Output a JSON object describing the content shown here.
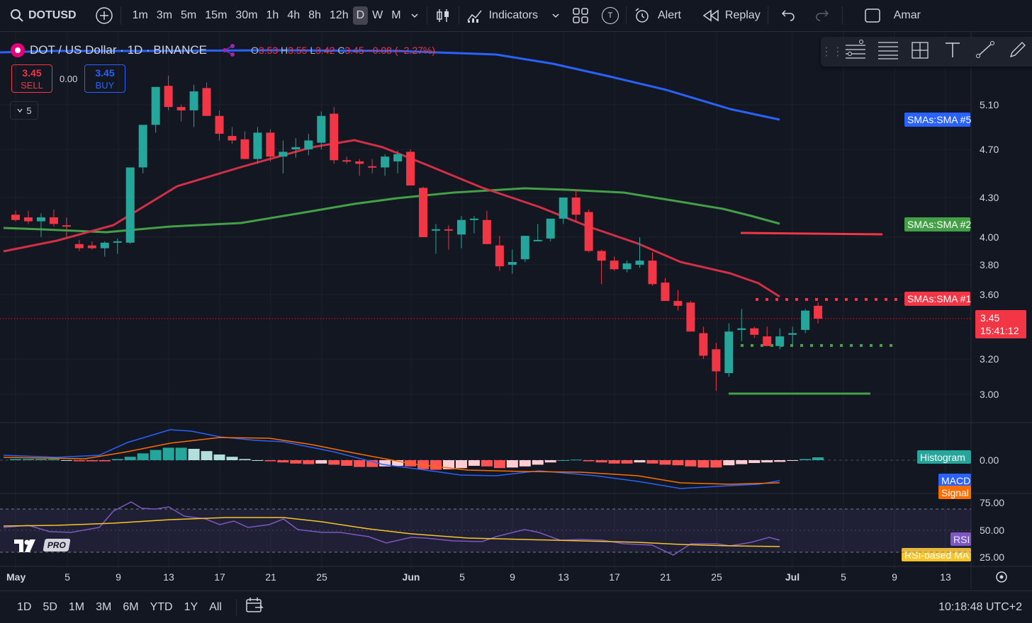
{
  "toolbar": {
    "symbol": "DOTUSD",
    "timeframes": [
      "1m",
      "3m",
      "5m",
      "15m",
      "30m",
      "1h",
      "4h",
      "8h",
      "12h",
      "D",
      "W",
      "M"
    ],
    "active_timeframe": "D",
    "indicators_label": "Indicators",
    "template_badge": "T",
    "alert_label": "Alert",
    "replay_label": "Replay",
    "user_label": "Amar"
  },
  "legend": {
    "title": "DOT / US Dollar · 1D · BINANCE",
    "o_label": "O",
    "o": "3.53",
    "h_label": "H",
    "h": "3.55",
    "l_label": "L",
    "l": "3.42",
    "c_label": "C",
    "c": "3.45",
    "change": "−0.08 (−2.27%)",
    "sell_price": "3.45",
    "sell_label": "SELL",
    "spread": "0.00",
    "buy_price": "3.45",
    "buy_label": "BUY",
    "collapse_count": "5"
  },
  "logo_text": "PRO",
  "bottom": {
    "ranges": [
      "1D",
      "5D",
      "1M",
      "3M",
      "6M",
      "YTD",
      "1Y",
      "All"
    ],
    "clock": "10:18:48 UTC+2"
  },
  "chart_data": {
    "type": "candlestick",
    "symbol": "DOT / US Dollar",
    "interval": "1D",
    "exchange": "BINANCE",
    "price_axis_ticks": [
      "5.10",
      "4.70",
      "4.30",
      "4.00",
      "3.80",
      "3.60",
      "3.20",
      "3.00"
    ],
    "macd_axis_ticks": [
      "0.00"
    ],
    "rsi_axis_ticks": [
      "75.00",
      "50.00",
      "25.00"
    ],
    "date_axis_ticks": [
      "May",
      "5",
      "9",
      "13",
      "17",
      "21",
      "25",
      "Jun",
      "5",
      "9",
      "13",
      "17",
      "21",
      "25",
      "Jul",
      "5",
      "9",
      "13"
    ],
    "last_price": "3.45",
    "countdown": "15:41:12",
    "series_tags": [
      {
        "name": "SMAs:SMA #5",
        "color": "#2962ff"
      },
      {
        "name": "SMAs:SMA #2",
        "color": "#43a047"
      },
      {
        "name": "SMAs:SMA #1",
        "color": "#f23645"
      }
    ],
    "indicator_tags": [
      {
        "name": "Histogram",
        "color": "#26a69a"
      },
      {
        "name": "MACD",
        "color": "#2962ff"
      },
      {
        "name": "Signal",
        "color": "#ff6d00"
      },
      {
        "name": "RSI",
        "color": "#7e57c2"
      },
      {
        "name": "RSI-based MA",
        "color": "#f7c52a"
      }
    ],
    "candles_ohlc": [
      [
        4.17,
        4.2,
        4.12,
        4.13
      ],
      [
        4.15,
        4.2,
        4.1,
        4.12
      ],
      [
        4.12,
        4.18,
        4.0,
        4.15
      ],
      [
        4.15,
        4.21,
        4.08,
        4.1
      ],
      [
        4.09,
        4.15,
        4.0,
        4.08
      ],
      [
        3.95,
        3.98,
        3.9,
        3.92
      ],
      [
        3.94,
        3.97,
        3.91,
        3.92
      ],
      [
        3.92,
        3.97,
        3.86,
        3.96
      ],
      [
        3.96,
        3.99,
        3.88,
        3.97
      ],
      [
        3.96,
        4.55,
        3.95,
        4.55
      ],
      [
        4.55,
        4.9,
        4.5,
        4.92
      ],
      [
        4.92,
        5.25,
        4.85,
        5.26
      ],
      [
        5.27,
        5.36,
        5.05,
        5.08
      ],
      [
        5.08,
        5.1,
        4.95,
        5.05
      ],
      [
        5.05,
        5.28,
        4.9,
        5.22
      ],
      [
        5.25,
        5.3,
        5.0,
        5.0
      ],
      [
        5.0,
        5.05,
        4.78,
        4.84
      ],
      [
        4.82,
        4.9,
        4.75,
        4.78
      ],
      [
        4.79,
        4.86,
        4.62,
        4.62
      ],
      [
        4.62,
        4.9,
        4.58,
        4.85
      ],
      [
        4.85,
        4.88,
        4.6,
        4.64
      ],
      [
        4.64,
        4.78,
        4.5,
        4.68
      ],
      [
        4.7,
        4.8,
        4.63,
        4.72
      ],
      [
        4.7,
        4.84,
        4.65,
        4.78
      ],
      [
        4.76,
        5.04,
        4.7,
        5.0
      ],
      [
        5.02,
        5.08,
        4.58,
        4.61
      ],
      [
        4.61,
        4.64,
        4.58,
        4.6
      ],
      [
        4.6,
        4.62,
        4.48,
        4.58
      ],
      [
        4.56,
        4.62,
        4.5,
        4.55
      ],
      [
        4.55,
        4.66,
        4.48,
        4.64
      ],
      [
        4.6,
        4.69,
        4.5,
        4.66
      ],
      [
        4.68,
        4.7,
        4.4,
        4.4
      ],
      [
        4.38,
        4.39,
        4.0,
        4.0
      ],
      [
        4.05,
        4.1,
        3.88,
        4.06
      ],
      [
        4.06,
        4.09,
        3.91,
        4.05
      ],
      [
        4.02,
        4.16,
        3.92,
        4.13
      ],
      [
        4.13,
        4.16,
        4.03,
        4.14
      ],
      [
        4.13,
        4.2,
        3.95,
        3.95
      ],
      [
        3.94,
        4.01,
        3.76,
        3.79
      ],
      [
        3.8,
        3.91,
        3.74,
        3.82
      ],
      [
        3.84,
        4.01,
        3.82,
        4.01
      ],
      [
        3.98,
        4.1,
        3.97,
        3.98
      ],
      [
        3.99,
        4.1,
        3.97,
        4.14
      ],
      [
        4.14,
        4.3,
        4.1,
        4.3
      ],
      [
        4.3,
        4.37,
        4.12,
        4.17
      ],
      [
        4.19,
        4.21,
        3.89,
        3.9
      ],
      [
        3.9,
        3.91,
        3.67,
        3.83
      ],
      [
        3.83,
        3.86,
        3.76,
        3.77
      ],
      [
        3.77,
        3.83,
        3.75,
        3.81
      ],
      [
        3.8,
        4.0,
        3.78,
        3.83
      ],
      [
        3.83,
        3.89,
        3.66,
        3.67
      ],
      [
        3.68,
        3.71,
        3.56,
        3.56
      ],
      [
        3.56,
        3.63,
        3.5,
        3.53
      ],
      [
        3.55,
        3.56,
        3.37,
        3.37
      ],
      [
        3.36,
        3.4,
        3.2,
        3.22
      ],
      [
        3.26,
        3.3,
        3.02,
        3.13
      ],
      [
        3.12,
        3.42,
        3.1,
        3.37
      ],
      [
        3.38,
        3.51,
        3.31,
        3.39
      ],
      [
        3.39,
        3.4,
        3.33,
        3.35
      ],
      [
        3.34,
        3.4,
        3.28,
        3.28
      ],
      [
        3.28,
        3.39,
        3.26,
        3.34
      ],
      [
        3.35,
        3.4,
        3.29,
        3.36
      ],
      [
        3.38,
        3.51,
        3.36,
        3.5
      ],
      [
        3.53,
        3.55,
        3.42,
        3.45
      ]
    ]
  }
}
